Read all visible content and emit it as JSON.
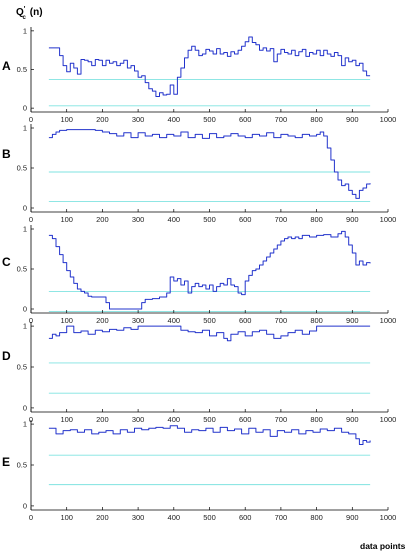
{
  "chart_data": {
    "type": "line",
    "ylabel": "Q'c (n)",
    "ylabel_main": "Q",
    "ylabel_super": "'",
    "ylabel_sub": "c",
    "ylabel_rest": "(n)",
    "xlabel": "data points",
    "xlim": [
      0,
      1000
    ],
    "ylim": [
      -0.05,
      1.05
    ],
    "xticks": [
      0,
      100,
      200,
      300,
      400,
      500,
      600,
      700,
      800,
      900,
      1000
    ],
    "yticks": [
      0,
      0.5,
      1
    ],
    "grid": false,
    "colors": {
      "series": "#2233cc",
      "reference": "#7fe3e0"
    },
    "panels": [
      {
        "label": "A",
        "reference_lines": [
          0.37,
          0.03
        ],
        "series": {
          "x": [
            50,
            70,
            80,
            90,
            100,
            110,
            120,
            130,
            140,
            150,
            160,
            170,
            180,
            190,
            200,
            210,
            220,
            230,
            240,
            250,
            260,
            270,
            280,
            290,
            300,
            310,
            320,
            330,
            340,
            350,
            360,
            370,
            380,
            390,
            400,
            410,
            420,
            430,
            440,
            450,
            460,
            470,
            480,
            490,
            500,
            510,
            520,
            530,
            540,
            550,
            560,
            570,
            580,
            590,
            600,
            610,
            620,
            630,
            640,
            650,
            660,
            670,
            680,
            690,
            700,
            710,
            720,
            730,
            740,
            750,
            760,
            770,
            780,
            790,
            800,
            810,
            820,
            830,
            840,
            850,
            860,
            870,
            880,
            890,
            900,
            910,
            920,
            930,
            940,
            950
          ],
          "y": [
            0.78,
            0.78,
            0.68,
            0.55,
            0.47,
            0.58,
            0.52,
            0.44,
            0.63,
            0.62,
            0.6,
            0.55,
            0.63,
            0.62,
            0.55,
            0.62,
            0.58,
            0.6,
            0.55,
            0.58,
            0.62,
            0.52,
            0.55,
            0.48,
            0.4,
            0.42,
            0.33,
            0.25,
            0.22,
            0.15,
            0.2,
            0.17,
            0.18,
            0.3,
            0.18,
            0.4,
            0.52,
            0.65,
            0.75,
            0.8,
            0.75,
            0.68,
            0.7,
            0.76,
            0.74,
            0.7,
            0.77,
            0.7,
            0.72,
            0.67,
            0.73,
            0.7,
            0.75,
            0.8,
            0.86,
            0.92,
            0.85,
            0.82,
            0.75,
            0.78,
            0.74,
            0.77,
            0.6,
            0.7,
            0.76,
            0.72,
            0.7,
            0.75,
            0.68,
            0.73,
            0.76,
            0.67,
            0.72,
            0.7,
            0.75,
            0.68,
            0.75,
            0.7,
            0.67,
            0.72,
            0.68,
            0.55,
            0.65,
            0.6,
            0.62,
            0.55,
            0.58,
            0.48,
            0.42,
            0.42
          ]
        }
      },
      {
        "label": "B",
        "reference_lines": [
          0.45,
          0.08
        ],
        "series": {
          "x": [
            50,
            60,
            70,
            80,
            100,
            120,
            140,
            160,
            180,
            200,
            220,
            240,
            260,
            280,
            300,
            320,
            340,
            360,
            380,
            400,
            420,
            440,
            460,
            480,
            500,
            520,
            540,
            560,
            580,
            600,
            620,
            640,
            660,
            680,
            700,
            720,
            740,
            760,
            780,
            800,
            810,
            820,
            830,
            840,
            850,
            860,
            870,
            880,
            890,
            900,
            910,
            920,
            930,
            940,
            950
          ],
          "y": [
            0.88,
            0.92,
            0.95,
            0.97,
            0.98,
            0.98,
            0.98,
            0.98,
            0.97,
            0.95,
            0.93,
            0.9,
            0.94,
            0.88,
            0.94,
            0.9,
            0.92,
            0.88,
            0.92,
            0.9,
            0.95,
            0.88,
            0.92,
            0.87,
            0.93,
            0.88,
            0.9,
            0.93,
            0.9,
            0.88,
            0.92,
            0.9,
            0.94,
            0.88,
            0.92,
            0.9,
            0.88,
            0.92,
            0.9,
            0.92,
            0.95,
            0.9,
            0.75,
            0.6,
            0.45,
            0.35,
            0.28,
            0.3,
            0.22,
            0.17,
            0.12,
            0.22,
            0.25,
            0.3,
            0.31
          ]
        }
      },
      {
        "label": "C",
        "reference_lines": [
          0.22,
          -0.03
        ],
        "series": {
          "x": [
            50,
            60,
            70,
            80,
            90,
            100,
            110,
            120,
            130,
            140,
            150,
            160,
            170,
            180,
            190,
            200,
            210,
            220,
            240,
            260,
            280,
            300,
            310,
            320,
            340,
            360,
            380,
            390,
            400,
            410,
            420,
            430,
            440,
            450,
            460,
            470,
            480,
            490,
            500,
            510,
            520,
            530,
            540,
            550,
            560,
            570,
            580,
            590,
            600,
            610,
            620,
            630,
            640,
            650,
            660,
            670,
            680,
            690,
            700,
            710,
            720,
            730,
            740,
            750,
            760,
            780,
            800,
            820,
            840,
            860,
            870,
            880,
            890,
            900,
            910,
            920,
            930,
            940,
            950
          ],
          "y": [
            0.92,
            0.88,
            0.78,
            0.68,
            0.58,
            0.48,
            0.4,
            0.32,
            0.25,
            0.22,
            0.2,
            0.16,
            0.15,
            0.15,
            0.15,
            0.15,
            0.08,
            0.0,
            0.0,
            0.0,
            0.0,
            0.0,
            0.08,
            0.12,
            0.13,
            0.15,
            0.2,
            0.4,
            0.35,
            0.38,
            0.3,
            0.35,
            0.2,
            0.28,
            0.32,
            0.28,
            0.3,
            0.25,
            0.3,
            0.22,
            0.28,
            0.32,
            0.3,
            0.38,
            0.3,
            0.28,
            0.2,
            0.18,
            0.35,
            0.42,
            0.48,
            0.5,
            0.55,
            0.6,
            0.65,
            0.7,
            0.75,
            0.8,
            0.85,
            0.88,
            0.9,
            0.88,
            0.9,
            0.88,
            0.92,
            0.9,
            0.92,
            0.93,
            0.9,
            0.94,
            0.97,
            0.9,
            0.8,
            0.7,
            0.55,
            0.6,
            0.55,
            0.58,
            0.57
          ]
        }
      },
      {
        "label": "D",
        "reference_lines": [
          0.55,
          0.18
        ],
        "series": {
          "x": [
            50,
            60,
            70,
            80,
            100,
            120,
            140,
            160,
            180,
            200,
            220,
            240,
            260,
            280,
            300,
            320,
            340,
            360,
            380,
            400,
            420,
            440,
            460,
            480,
            500,
            520,
            540,
            550,
            560,
            580,
            600,
            620,
            640,
            660,
            680,
            700,
            720,
            740,
            760,
            780,
            800,
            820,
            840,
            860,
            880,
            900,
            920,
            950
          ],
          "y": [
            0.85,
            0.9,
            0.88,
            0.92,
            1.0,
            0.92,
            0.94,
            0.9,
            0.95,
            0.93,
            0.96,
            0.95,
            0.98,
            0.96,
            1.0,
            1.0,
            1.0,
            1.0,
            1.0,
            1.0,
            0.95,
            0.93,
            0.92,
            0.95,
            0.88,
            0.92,
            0.85,
            0.82,
            0.9,
            0.93,
            0.88,
            0.93,
            0.95,
            0.9,
            0.85,
            0.88,
            0.92,
            0.95,
            0.9,
            0.94,
            1.0,
            1.0,
            1.0,
            1.0,
            1.0,
            1.0,
            1.0,
            1.0
          ]
        }
      },
      {
        "label": "E",
        "reference_lines": [
          0.62,
          0.26
        ],
        "series": {
          "x": [
            50,
            70,
            90,
            110,
            130,
            150,
            170,
            190,
            210,
            230,
            250,
            270,
            290,
            310,
            330,
            350,
            370,
            390,
            410,
            430,
            450,
            470,
            490,
            510,
            530,
            550,
            570,
            590,
            610,
            630,
            650,
            670,
            690,
            710,
            730,
            750,
            770,
            790,
            810,
            830,
            850,
            870,
            890,
            910,
            920,
            930,
            940,
            950
          ],
          "y": [
            0.95,
            0.88,
            0.92,
            0.93,
            0.9,
            0.93,
            0.88,
            0.9,
            0.92,
            0.88,
            0.93,
            0.9,
            0.95,
            0.93,
            0.95,
            0.96,
            0.95,
            0.98,
            0.95,
            0.9,
            0.93,
            0.92,
            0.95,
            0.9,
            0.96,
            0.92,
            0.94,
            0.88,
            0.95,
            0.9,
            0.93,
            0.85,
            0.92,
            0.9,
            0.93,
            0.88,
            0.92,
            0.9,
            0.94,
            0.92,
            0.95,
            0.9,
            0.88,
            0.82,
            0.75,
            0.8,
            0.78,
            0.8
          ]
        }
      }
    ]
  }
}
